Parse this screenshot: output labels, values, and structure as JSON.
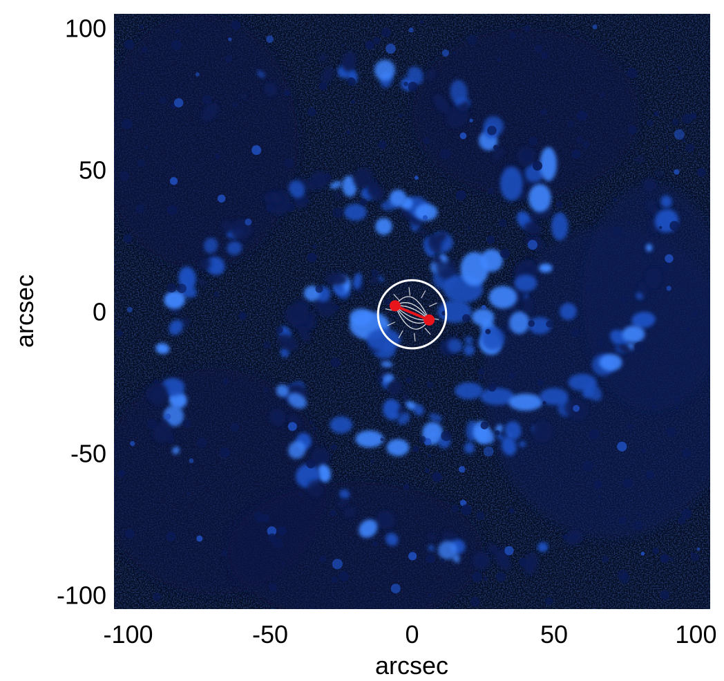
{
  "figure": {
    "description_type": "solar image with spiral plasma pattern",
    "colormap": {
      "background": "#040c22",
      "low": "#0a1a55",
      "mid": "#1f4fbf",
      "high": "#3f86ff",
      "peak": "#7fb6ff"
    },
    "overlay": {
      "circle_color": "#ffffff",
      "field_line_color": "#ffffff",
      "dipole_color": "#e8161c"
    },
    "dipole": {
      "positive_pole": {
        "x": -6,
        "y": 2
      },
      "negative_pole": {
        "x": 6,
        "y": -3
      }
    },
    "overlay_circle": {
      "center_x": 0,
      "center_y": -1,
      "radius": 12
    }
  },
  "axes": {
    "xlabel": "arcsec",
    "ylabel": "arcsec",
    "xlim": [
      -105,
      105
    ],
    "ylim": [
      -105,
      105
    ],
    "x_ticks": [
      {
        "value": -100,
        "label": "-100"
      },
      {
        "value": -50,
        "label": "-50"
      },
      {
        "value": 0,
        "label": "0"
      },
      {
        "value": 50,
        "label": "50"
      },
      {
        "value": 100,
        "label": "100"
      }
    ],
    "y_ticks": [
      {
        "value": 100,
        "label": "100"
      },
      {
        "value": 50,
        "label": "50"
      },
      {
        "value": 0,
        "label": "0"
      },
      {
        "value": -50,
        "label": "-50"
      },
      {
        "value": -100,
        "label": "-100"
      }
    ]
  }
}
